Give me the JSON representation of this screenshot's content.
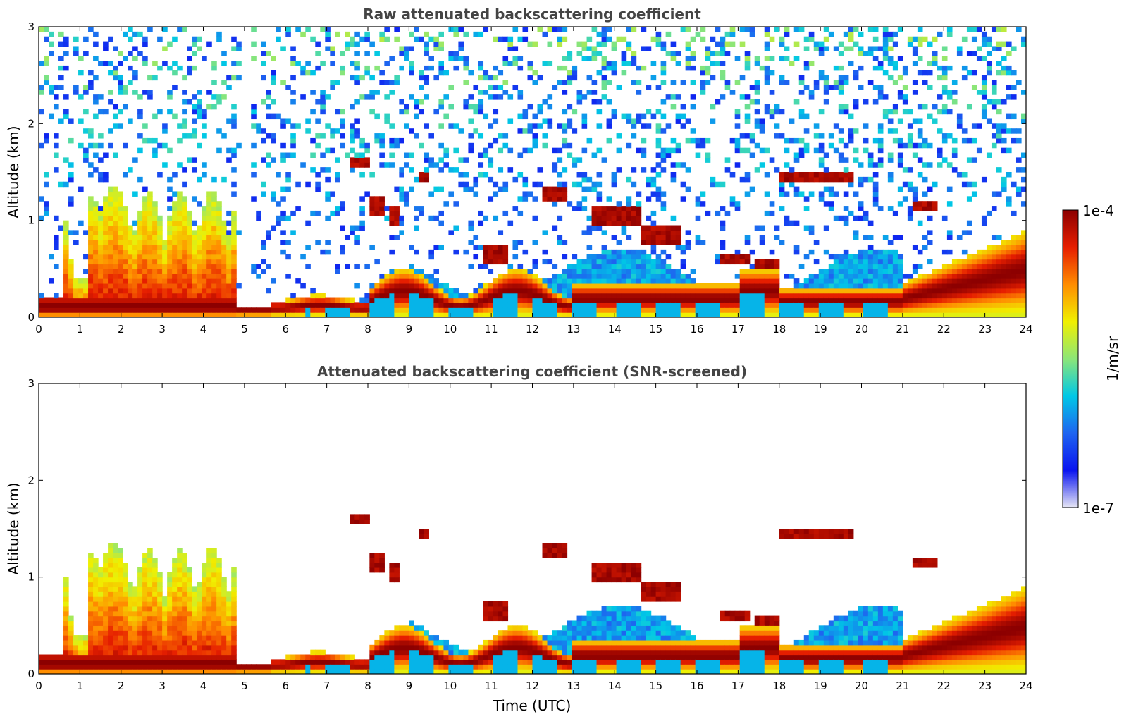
{
  "chart_data": [
    {
      "type": "heatmap",
      "title": "Raw attenuated backscattering coefficient",
      "xlabel": "",
      "ylabel": "Altitude (km)",
      "xlim": [
        0,
        24
      ],
      "ylim": [
        0,
        3
      ],
      "xticks": [
        "0",
        "1",
        "2",
        "3",
        "4",
        "5",
        "6",
        "7",
        "8",
        "9",
        "10",
        "11",
        "12",
        "13",
        "14",
        "15",
        "16",
        "17",
        "18",
        "19",
        "20",
        "21",
        "22",
        "23",
        "24"
      ],
      "yticks": [
        "0",
        "1",
        "2",
        "3"
      ],
      "features": [
        {
          "name": "boundary layer",
          "x_start": 0,
          "x_end": 24,
          "altitude_km": 0.15
        },
        {
          "name": "convective cloud",
          "x_start": 1.2,
          "x_end": 4.8,
          "altitude_top_km": 1.4
        },
        {
          "name": "cloud layer",
          "x_start": 18,
          "x_end": 19.8,
          "altitude_km": 1.45
        },
        {
          "name": "cloud layer",
          "x_start": 21.2,
          "x_end": 21.9,
          "altitude_km": 1.15
        },
        {
          "name": "cloud layer",
          "x_start": 12.2,
          "x_end": 12.8,
          "altitude_km": 1.3
        }
      ]
    },
    {
      "type": "heatmap",
      "title": "Attenuated backscattering coefficient (SNR-screened)",
      "xlabel": "Time (UTC)",
      "ylabel": "Altitude (km)",
      "xlim": [
        0,
        24
      ],
      "ylim": [
        0,
        3
      ],
      "xticks": [
        "0",
        "1",
        "2",
        "3",
        "4",
        "5",
        "6",
        "7",
        "8",
        "9",
        "10",
        "11",
        "12",
        "13",
        "14",
        "15",
        "16",
        "17",
        "18",
        "19",
        "20",
        "21",
        "22",
        "23",
        "24"
      ],
      "yticks": [
        "0",
        "1",
        "2",
        "3"
      ]
    }
  ],
  "colorbar": {
    "label": "1/m/sr",
    "max_label": "1e-4",
    "min_label": "1e-7",
    "scale": "log",
    "range": [
      1e-07,
      0.0001
    ],
    "colormap": [
      "#e6e6f5",
      "#0a14f0",
      "#1e64f0",
      "#00c8e6",
      "#8ce678",
      "#f0f000",
      "#ff8c00",
      "#e61e00",
      "#8c0000"
    ]
  }
}
